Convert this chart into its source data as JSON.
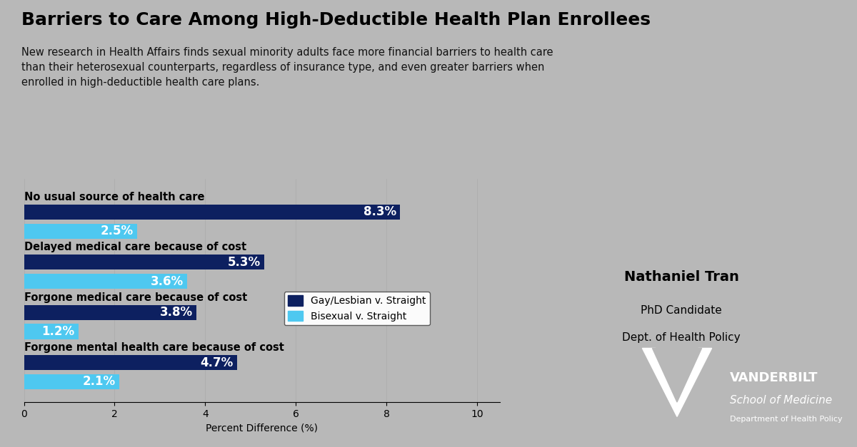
{
  "title": "Barriers to Care Among High-Deductible Health Plan Enrollees",
  "subtitle": "New research in Health Affairs finds sexual minority adults face more financial barriers to health care\nthan their heterosexual counterparts, regardless of insurance type, and even greater barriers when\nenrolled in high-deductible health care plans.",
  "categories": [
    "No usual source of health care",
    "Delayed medical care because of cost",
    "Forgone medical care because of cost",
    "Forgone mental health care because of cost"
  ],
  "gay_values": [
    8.3,
    5.3,
    3.8,
    4.7
  ],
  "bisexual_values": [
    2.5,
    3.6,
    1.2,
    2.1
  ],
  "gay_color": "#0d2060",
  "bisexual_color": "#4ec8f0",
  "bar_height": 0.3,
  "xlabel": "Percent Difference (%)",
  "xlim": [
    0,
    10.5
  ],
  "xticks": [
    0,
    2,
    4,
    6,
    8,
    10
  ],
  "legend_gay": "Gay/Lesbian v. Straight",
  "legend_bisexual": "Bisexual v. Straight",
  "background_color": "#b8b8b8",
  "title_color": "#000000",
  "subtitle_color": "#111111",
  "name": "Nathaniel Tran",
  "title_person": "PhD Candidate",
  "dept": "Dept. of Health Policy"
}
